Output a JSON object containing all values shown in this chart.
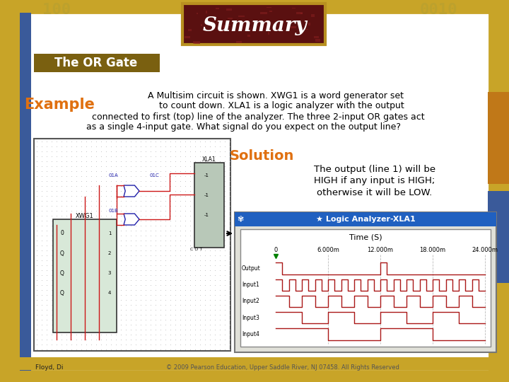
{
  "title": "Summary",
  "subtitle_box": "The OR Gate",
  "example_label": "Example",
  "solution_label": "Solution",
  "body_text_line1": "A Multisim circuit is shown. XWG1 is a word generator set",
  "body_text_line2": "    to count down. XLA1 is a logic analyzer with the output",
  "body_text_line3": "connected to first (top) line of the analyzer. The three 2-input OR gates act",
  "body_text_line4": "as a single 4-input gate. What signal do you expect on the output line?",
  "solution_text_line1": "The output (line 1) will be",
  "solution_text_line2": "HIGH if any input is HIGH;",
  "solution_text_line3": "otherwise it will be LOW.",
  "logic_analyzer_title": "★ Logic Analyzer-XLA1",
  "time_label": "Time (S)",
  "time_ticks": [
    "0",
    "6.000m",
    "12.000m",
    "18.000m",
    "24.000m"
  ],
  "signal_labels": [
    "Output",
    "Input1",
    "Input2",
    "Input3",
    "Input4"
  ],
  "bg_outer": "#c8a428",
  "bg_inner": "#ffffff",
  "title_box_bg": "#5a1010",
  "title_box_border": "#b89020",
  "subtitle_box_bg": "#7a6010",
  "subtitle_box_text": "#ffffff",
  "example_color": "#e07010",
  "solution_color": "#e07010",
  "body_text_color": "#000000",
  "logic_analyzer_header_bg": "#2060c0",
  "logic_analyzer_header_text": "#ffffff",
  "signal_color": "#aa1818",
  "grid_color": "#bbbbbb",
  "copyright_text": "© 2009 Pearson Education, Upper Saddle River, NJ 07458. All Rights Reserved",
  "copyright_color": "#555555",
  "floyd_text": "Floyd, Di",
  "left_bar_color": "#3a5a9a",
  "right_bar1_color": "#c07818",
  "right_bar2_color": "#3a5a9a",
  "top_num_color": "#b8a030",
  "wire_color": "#cc1818",
  "gate_color": "#2020aa"
}
